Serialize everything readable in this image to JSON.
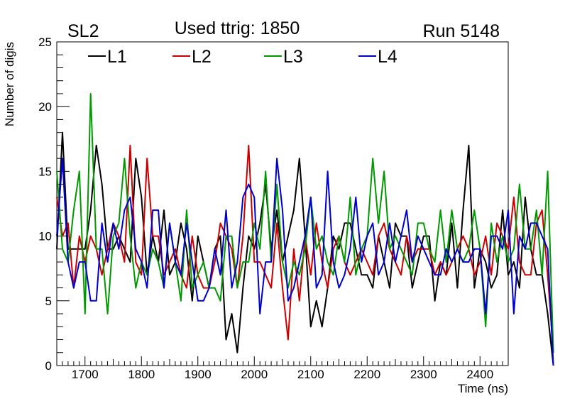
{
  "chart_data": {
    "type": "line",
    "title": "Used ttrig: 1850",
    "left_label": "SL2",
    "right_label": "Run 5148",
    "xlabel": "Time (ns)",
    "ylabel": "Number of digis",
    "xlim": [
      1650,
      2450
    ],
    "ylim": [
      0,
      25
    ],
    "xticks": [
      1700,
      1800,
      1900,
      2000,
      2100,
      2200,
      2300,
      2400
    ],
    "yticks": [
      0,
      5,
      10,
      15,
      20,
      25
    ],
    "legend_position": "top-left",
    "x_start": 1650,
    "x_step": 10,
    "series": [
      {
        "name": "L1",
        "color": "#000000",
        "values": [
          9,
          18,
          9,
          9,
          9,
          9,
          12,
          17,
          14,
          9,
          9,
          10,
          9,
          8,
          16,
          13,
          7,
          10,
          8,
          12,
          7,
          8,
          11,
          9,
          5,
          10,
          8,
          6,
          9,
          10,
          2,
          4,
          1,
          6,
          10,
          9,
          11,
          14,
          9,
          12,
          8,
          10,
          12,
          16,
          10,
          3,
          5,
          3,
          6,
          10,
          9,
          11,
          11,
          9,
          7,
          7,
          6,
          10,
          8,
          6,
          11,
          10,
          10,
          6,
          8,
          10,
          10,
          5,
          8,
          7,
          11,
          6,
          12,
          17,
          6,
          9,
          8,
          6,
          7,
          12,
          7,
          8,
          6,
          13,
          9,
          7,
          7,
          4,
          0
        ]
      },
      {
        "name": "L2",
        "color": "#cc0000",
        "values": [
          13,
          10,
          11,
          6,
          10,
          8,
          10,
          9,
          7,
          9,
          11,
          10,
          8,
          17,
          8,
          7,
          16,
          10,
          10,
          7,
          8,
          9,
          7,
          6,
          10,
          7,
          6,
          6,
          8,
          11,
          10,
          9,
          6,
          10,
          17,
          8,
          8,
          7,
          6,
          11,
          6,
          2,
          9,
          5,
          10,
          7,
          11,
          8,
          6,
          9,
          10,
          8,
          7,
          8,
          9,
          8,
          7,
          10,
          11,
          9,
          8,
          7,
          10,
          8,
          9,
          9,
          9,
          7,
          8,
          7,
          8,
          9,
          10,
          9,
          7,
          8,
          10,
          7,
          11,
          10,
          9,
          13,
          8,
          7,
          7,
          11,
          12,
          7,
          1
        ]
      },
      {
        "name": "L3",
        "color": "#009900",
        "values": [
          15,
          9,
          8,
          12,
          15,
          4,
          21,
          9,
          9,
          4,
          10,
          11,
          16,
          10,
          6,
          8,
          7,
          9,
          8,
          6,
          11,
          8,
          5,
          12,
          6,
          7,
          8,
          6,
          6,
          5,
          10,
          10,
          6,
          8,
          8,
          11,
          9,
          15,
          8,
          14,
          8,
          6,
          8,
          7,
          9,
          13,
          9,
          10,
          8,
          7,
          10,
          8,
          13,
          7,
          9,
          10,
          16,
          11,
          15,
          9,
          10,
          9,
          8,
          7,
          11,
          11,
          9,
          8,
          12,
          8,
          12,
          9,
          8,
          9,
          12,
          9,
          3,
          11,
          8,
          10,
          8,
          9,
          14,
          9,
          9,
          12,
          7,
          15,
          1
        ]
      },
      {
        "name": "L4",
        "color": "#0000cc",
        "values": [
          10,
          16,
          8,
          6,
          8,
          8,
          5,
          5,
          11,
          8,
          11,
          9,
          12,
          13,
          9,
          8,
          6,
          12,
          12,
          6,
          11,
          8,
          7,
          11,
          8,
          5,
          5,
          6,
          9,
          7,
          12,
          6,
          8,
          13,
          14,
          13,
          4,
          8,
          8,
          16,
          12,
          5,
          6,
          8,
          10,
          13,
          6,
          7,
          15,
          8,
          6,
          7,
          9,
          13,
          8,
          10,
          11,
          7,
          8,
          11,
          8,
          10,
          12,
          8,
          10,
          9,
          8,
          7,
          7,
          9,
          8,
          9,
          8,
          8,
          9,
          9,
          4,
          10,
          10,
          9,
          12,
          4,
          10,
          9,
          11,
          11,
          10,
          9,
          0
        ]
      }
    ]
  }
}
